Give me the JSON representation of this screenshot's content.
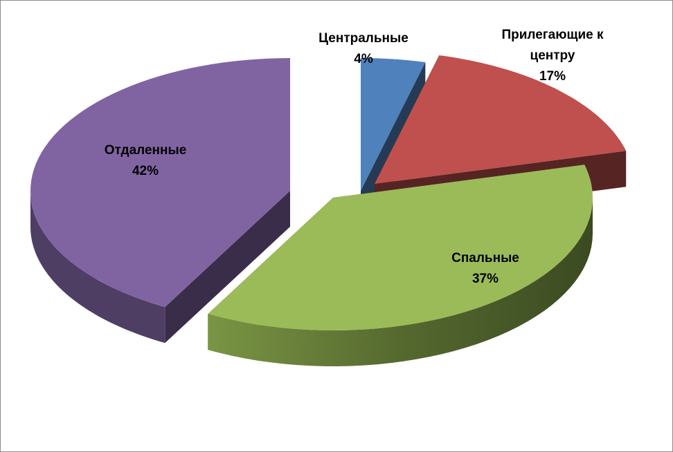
{
  "chart_data": {
    "type": "pie",
    "style": "3d-exploded",
    "legend": "none",
    "slices": [
      {
        "name": "Центральные",
        "value": 4,
        "label_lines": [
          "Центральные"
        ],
        "percent_label": "4%",
        "color": "#4f81bd"
      },
      {
        "name": "Прилегающие к центру",
        "value": 17,
        "label_lines": [
          "Прилегающие к",
          "центру"
        ],
        "percent_label": "17%",
        "color": "#c0504d"
      },
      {
        "name": "Спальные",
        "value": 37,
        "label_lines": [
          "Спальные"
        ],
        "percent_label": "37%",
        "color": "#9bbb59"
      },
      {
        "name": "Отдаленные",
        "value": 42,
        "label_lines": [
          "Отдаленные"
        ],
        "percent_label": "42%",
        "color": "#8064a2"
      }
    ]
  }
}
